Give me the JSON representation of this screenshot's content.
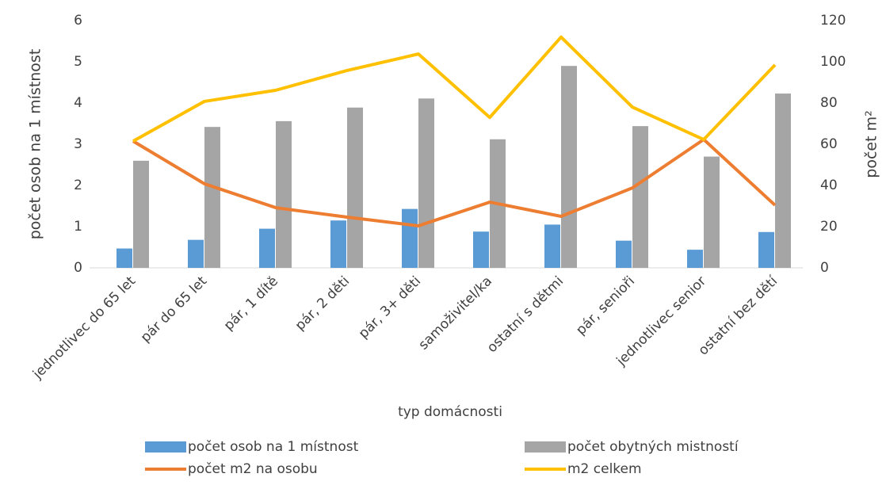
{
  "chart_data": {
    "type": "bar",
    "x_label": "typ domácnosti",
    "y_label": "počet osob na 1 místnost",
    "y2_label": "počet m²",
    "categories": [
      "jednotlivec do 65 let",
      "pár do 65 let",
      "pár, 1 dítě",
      "pár, 2 děti",
      "pár, 3+ děti",
      "samoživitel/ka",
      "ostatní s dětmi",
      "pár, senioři",
      "jednotlivec senior",
      "ostatní bez dětí"
    ],
    "series": [
      {
        "name": "počet osob na 1 místnost",
        "type": "bar",
        "color": "#5b9bd5",
        "values": [
          0.47,
          0.68,
          0.95,
          1.15,
          1.43,
          0.88,
          1.05,
          0.66,
          0.44,
          0.87
        ]
      },
      {
        "name": "počet obytných mistností",
        "type": "bar",
        "color": "#a5a5a5",
        "values": [
          2.6,
          3.42,
          3.56,
          3.89,
          4.11,
          3.12,
          4.9,
          3.44,
          2.7,
          4.23
        ]
      },
      {
        "name": "počet m2 na osobu",
        "type": "line",
        "axis": "y2",
        "color": "#ed7d31",
        "values": [
          61.5,
          40.8,
          29.2,
          24.6,
          20.4,
          31.9,
          25,
          38.8,
          62.3,
          30.4
        ]
      },
      {
        "name": "m2 celkem",
        "type": "line",
        "axis": "y2",
        "color": "#ffc000",
        "values": [
          61.5,
          80.8,
          86.2,
          95.8,
          103.8,
          73,
          112,
          78,
          62.3,
          98.5
        ]
      }
    ],
    "ylim": [
      0,
      6
    ],
    "yticks": [
      0,
      1,
      2,
      3,
      4,
      5,
      6
    ],
    "y2lim": [
      0,
      120
    ],
    "y2ticks": [
      0,
      20,
      40,
      60,
      80,
      100,
      120
    ],
    "grid": false
  }
}
